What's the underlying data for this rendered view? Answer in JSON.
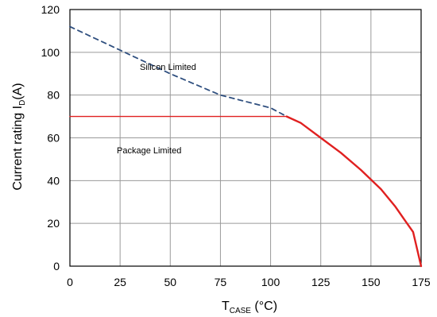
{
  "chart_data": {
    "type": "line",
    "xlabel": {
      "main": "T",
      "sub": "CASE",
      "unit": " (°C)"
    },
    "ylabel": {
      "main": "Current rating I",
      "sub": "D",
      "unit": "(A)"
    },
    "xlim": [
      0,
      175
    ],
    "ylim": [
      0,
      120
    ],
    "x_ticks": [
      0,
      25,
      50,
      75,
      100,
      125,
      150,
      175
    ],
    "y_ticks": [
      0,
      20,
      40,
      60,
      80,
      100,
      120
    ],
    "grid": true,
    "annotations": {
      "silicon": "Silicon Limited",
      "package": "Package Limited"
    },
    "series": [
      {
        "style": "dashed",
        "color": "#2f4f7f",
        "x": [
          0,
          25,
          50,
          75,
          100,
          108
        ],
        "y": [
          112,
          101,
          90,
          80,
          74,
          70
        ]
      },
      {
        "style": "solid",
        "color": "#e02020",
        "x": [
          0,
          108
        ],
        "y": [
          70,
          70
        ]
      },
      {
        "style": "solid",
        "color": "#e02020",
        "x": [
          108,
          115,
          125,
          135,
          145,
          155,
          162,
          168,
          171,
          175
        ],
        "y": [
          70,
          67,
          60,
          53,
          45,
          36,
          28,
          20,
          16,
          0
        ]
      }
    ]
  }
}
